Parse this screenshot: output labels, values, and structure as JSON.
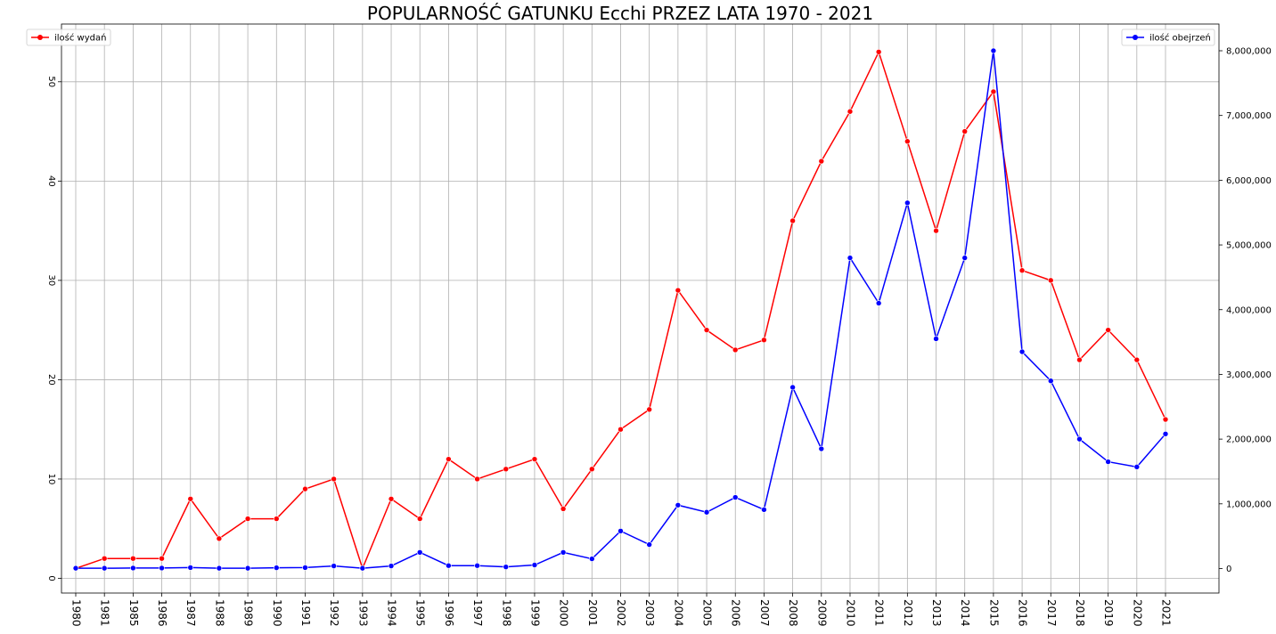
{
  "chart_data": {
    "type": "line",
    "title": "POPULARNOŚĆ GATUNKU Ecchi PRZEZ LATA 1970 - 2021",
    "categories": [
      "1980",
      "1981",
      "1985",
      "1986",
      "1987",
      "1988",
      "1989",
      "1990",
      "1991",
      "1992",
      "1993",
      "1994",
      "1995",
      "1996",
      "1997",
      "1998",
      "1999",
      "2000",
      "2001",
      "2002",
      "2003",
      "2004",
      "2005",
      "2006",
      "2007",
      "2008",
      "2009",
      "2010",
      "2011",
      "2012",
      "2013",
      "2014",
      "2015",
      "2016",
      "2017",
      "2018",
      "2019",
      "2020",
      "2021"
    ],
    "series": [
      {
        "name": "ilość wydań",
        "axis": "left",
        "color": "#ff0000",
        "values": [
          1,
          2,
          2,
          2,
          8,
          4,
          6,
          6,
          9,
          10,
          1,
          8,
          6,
          12,
          10,
          11,
          12,
          7,
          11,
          15,
          17,
          29,
          25,
          23,
          24,
          36,
          42,
          47,
          53,
          44,
          35,
          45,
          49,
          31,
          30,
          22,
          25,
          22,
          16
        ]
      },
      {
        "name": "ilość obejrzeń",
        "axis": "right",
        "color": "#0000ff",
        "values": [
          5000,
          5000,
          8000,
          8000,
          15000,
          5000,
          5000,
          12000,
          15000,
          40000,
          5000,
          40000,
          250000,
          45000,
          45000,
          25000,
          55000,
          250000,
          150000,
          580000,
          370000,
          980000,
          870000,
          1100000,
          910000,
          2800000,
          1850000,
          4800000,
          4100000,
          5650000,
          3550000,
          4800000,
          8000000,
          3350000,
          2900000,
          2000000,
          1650000,
          1570000,
          2080000
        ]
      }
    ],
    "y_left": {
      "ticks": [
        0,
        10,
        20,
        30,
        40,
        50
      ],
      "ylim": [
        -1.5,
        53.5
      ]
    },
    "y_right": {
      "ticks": [
        0,
        1000000,
        2000000,
        3000000,
        4000000,
        5000000,
        6000000,
        7000000,
        8000000
      ],
      "tick_labels": [
        "0",
        "1,000,000",
        "2,000,000",
        "3,000,000",
        "4,000,000",
        "5,000,000",
        "6,000,000",
        "7,000,000",
        "8,000,000"
      ],
      "ylim": [
        -400000,
        8000000
      ]
    },
    "grid": true,
    "legend_left": "top-left",
    "legend_right": "top-right"
  }
}
